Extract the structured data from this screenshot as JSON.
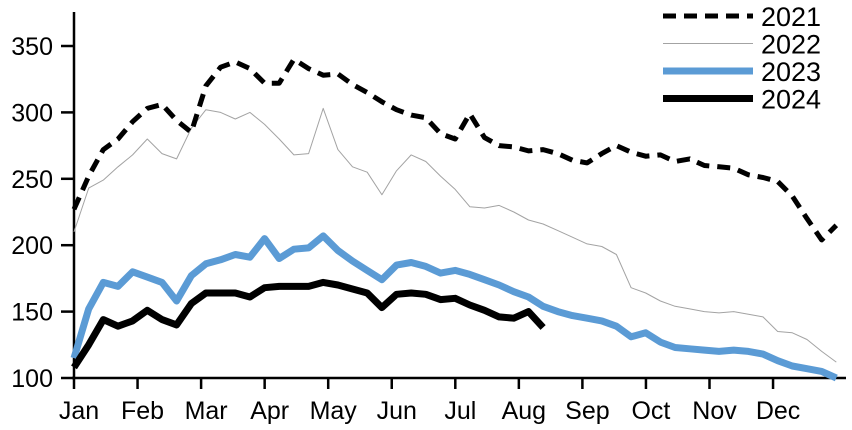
{
  "chart_data": {
    "type": "line",
    "title": "",
    "xlabel": "",
    "ylabel": "",
    "x_tick_labels": [
      "Jan",
      "Feb",
      "Mar",
      "Apr",
      "May",
      "Jun",
      "Jul",
      "Aug",
      "Sep",
      "Oct",
      "Nov",
      "Dec"
    ],
    "y_tick_labels": [
      "100",
      "150",
      "200",
      "250",
      "300",
      "350"
    ],
    "ylim": [
      100,
      350
    ],
    "grid": false,
    "legend_position": "top-right",
    "x_resolution": "weekly",
    "axis_color": "#000000",
    "series": [
      {
        "name": "2021",
        "color": "#000000",
        "style": "dashed",
        "line_width": 5,
        "values": [
          227,
          252,
          272,
          280,
          293,
          303,
          306,
          294,
          285,
          320,
          334,
          338,
          333,
          322,
          322,
          340,
          333,
          328,
          329,
          321,
          315,
          308,
          302,
          298,
          296,
          284,
          280,
          299,
          281,
          275,
          274,
          271,
          272,
          269,
          264,
          262,
          269,
          275,
          270,
          267,
          268,
          263,
          265,
          260,
          259,
          258,
          253,
          251,
          248,
          237,
          220,
          204,
          215
        ]
      },
      {
        "name": "2022",
        "color": "#A3A3A3",
        "style": "solid",
        "line_width": 1,
        "values": [
          210,
          243,
          249,
          259,
          268,
          280,
          269,
          265,
          288,
          302,
          300,
          295,
          300,
          291,
          280,
          268,
          269,
          303,
          272,
          259,
          255,
          238,
          256,
          268,
          263,
          252,
          242,
          229,
          228,
          230,
          225,
          219,
          216,
          211,
          206,
          201,
          199,
          193,
          168,
          164,
          158,
          154,
          152,
          150,
          149,
          150,
          148,
          146,
          135,
          134,
          129,
          120,
          112
        ]
      },
      {
        "name": "2023",
        "color": "#5B9BD5",
        "style": "solid",
        "line_width": 7,
        "values": [
          115,
          152,
          172,
          169,
          180,
          176,
          172,
          158,
          177,
          186,
          189,
          193,
          191,
          205,
          190,
          197,
          198,
          207,
          196,
          188,
          181,
          174,
          185,
          187,
          184,
          179,
          181,
          178,
          174,
          170,
          165,
          161,
          154,
          150,
          147,
          145,
          143,
          139,
          131,
          134,
          127,
          123,
          122,
          121,
          120,
          121,
          120,
          118,
          113,
          109,
          107,
          105,
          100
        ]
      },
      {
        "name": "2024",
        "color": "#000000",
        "style": "solid",
        "line_width": 7,
        "values": [
          108,
          125,
          144,
          139,
          143,
          151,
          144,
          140,
          156,
          164,
          164,
          164,
          161,
          168,
          169,
          169,
          169,
          172,
          170,
          167,
          164,
          153,
          163,
          164,
          163,
          159,
          160,
          155,
          151,
          146,
          145,
          150,
          138
        ]
      }
    ]
  }
}
